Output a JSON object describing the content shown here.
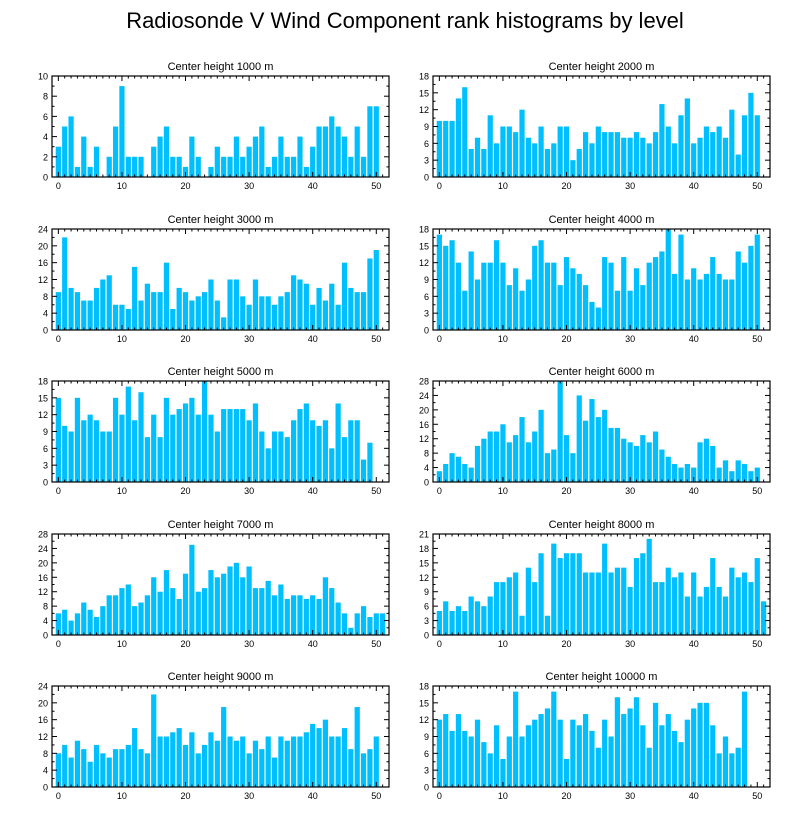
{
  "title": "Radiosonde V Wind Component rank histograms by level",
  "colors": {
    "bar": "#00bfff",
    "axis": "#000000",
    "background": "#ffffff"
  },
  "chart_data": [
    {
      "type": "bar",
      "title": "Center height 1000 m",
      "xlabel": "",
      "ylabel": "",
      "xlim": [
        -1,
        52
      ],
      "ylim": [
        0,
        10
      ],
      "xticks": [
        0,
        10,
        20,
        30,
        40,
        50
      ],
      "yticks": [
        0,
        2,
        4,
        6,
        8,
        10
      ],
      "categories": [
        0,
        1,
        2,
        3,
        4,
        5,
        6,
        7,
        8,
        9,
        10,
        11,
        12,
        13,
        14,
        15,
        16,
        17,
        18,
        19,
        20,
        21,
        22,
        23,
        24,
        25,
        26,
        27,
        28,
        29,
        30,
        31,
        32,
        33,
        34,
        35,
        36,
        37,
        38,
        39,
        40,
        41,
        42,
        43,
        44,
        45,
        46,
        47,
        48,
        49,
        50,
        51
      ],
      "values": [
        3,
        5,
        6,
        1,
        4,
        1,
        3,
        0,
        2,
        5,
        9,
        2,
        2,
        2,
        0,
        3,
        4,
        5,
        2,
        2,
        1,
        4,
        2,
        0,
        1,
        3,
        2,
        2,
        4,
        2,
        3,
        4,
        5,
        1,
        2,
        4,
        2,
        2,
        4,
        1,
        3,
        5,
        5,
        6,
        5,
        4,
        2,
        5,
        2,
        7,
        7,
        0
      ]
    },
    {
      "type": "bar",
      "title": "Center height 2000 m",
      "xlabel": "",
      "ylabel": "",
      "xlim": [
        -1,
        52
      ],
      "ylim": [
        0,
        18
      ],
      "xticks": [
        0,
        10,
        20,
        30,
        40,
        50
      ],
      "yticks": [
        0,
        3,
        6,
        9,
        12,
        15,
        18
      ],
      "categories": [
        0,
        1,
        2,
        3,
        4,
        5,
        6,
        7,
        8,
        9,
        10,
        11,
        12,
        13,
        14,
        15,
        16,
        17,
        18,
        19,
        20,
        21,
        22,
        23,
        24,
        25,
        26,
        27,
        28,
        29,
        30,
        31,
        32,
        33,
        34,
        35,
        36,
        37,
        38,
        39,
        40,
        41,
        42,
        43,
        44,
        45,
        46,
        47,
        48,
        49,
        50,
        51
      ],
      "values": [
        10,
        10,
        10,
        14,
        16,
        5,
        7,
        5,
        11,
        6,
        9,
        9,
        8,
        12,
        7,
        6,
        9,
        5,
        6,
        9,
        9,
        3,
        5,
        8,
        6,
        9,
        8,
        8,
        8,
        7,
        7,
        8,
        7,
        6,
        8,
        13,
        9,
        6,
        11,
        14,
        6,
        7,
        9,
        8,
        9,
        7,
        12,
        4,
        11,
        15,
        11,
        0
      ]
    },
    {
      "type": "bar",
      "title": "Center height 3000 m",
      "xlabel": "",
      "ylabel": "",
      "xlim": [
        -1,
        52
      ],
      "ylim": [
        0,
        24
      ],
      "xticks": [
        0,
        10,
        20,
        30,
        40,
        50
      ],
      "yticks": [
        0,
        4,
        8,
        12,
        16,
        20,
        24
      ],
      "categories": [
        0,
        1,
        2,
        3,
        4,
        5,
        6,
        7,
        8,
        9,
        10,
        11,
        12,
        13,
        14,
        15,
        16,
        17,
        18,
        19,
        20,
        21,
        22,
        23,
        24,
        25,
        26,
        27,
        28,
        29,
        30,
        31,
        32,
        33,
        34,
        35,
        36,
        37,
        38,
        39,
        40,
        41,
        42,
        43,
        44,
        45,
        46,
        47,
        48,
        49,
        50,
        51
      ],
      "values": [
        9,
        22,
        10,
        9,
        7,
        7,
        10,
        12,
        13,
        6,
        6,
        5,
        15,
        7,
        11,
        9,
        9,
        16,
        5,
        10,
        9,
        7,
        8,
        9,
        12,
        7,
        3,
        12,
        12,
        8,
        6,
        12,
        8,
        8,
        6,
        8,
        9,
        13,
        12,
        11,
        6,
        10,
        7,
        11,
        6,
        16,
        10,
        9,
        9,
        17,
        19,
        0
      ]
    },
    {
      "type": "bar",
      "title": "Center height 4000 m",
      "xlabel": "",
      "ylabel": "",
      "xlim": [
        -1,
        52
      ],
      "ylim": [
        0,
        18
      ],
      "xticks": [
        0,
        10,
        20,
        30,
        40,
        50
      ],
      "yticks": [
        0,
        3,
        6,
        9,
        12,
        15,
        18
      ],
      "categories": [
        0,
        1,
        2,
        3,
        4,
        5,
        6,
        7,
        8,
        9,
        10,
        11,
        12,
        13,
        14,
        15,
        16,
        17,
        18,
        19,
        20,
        21,
        22,
        23,
        24,
        25,
        26,
        27,
        28,
        29,
        30,
        31,
        32,
        33,
        34,
        35,
        36,
        37,
        38,
        39,
        40,
        41,
        42,
        43,
        44,
        45,
        46,
        47,
        48,
        49,
        50,
        51
      ],
      "values": [
        17,
        15,
        16,
        12,
        7,
        14,
        9,
        12,
        12,
        16,
        12,
        8,
        11,
        7,
        9,
        15,
        16,
        12,
        12,
        8,
        13,
        11,
        10,
        8,
        5,
        4,
        13,
        12,
        7,
        13,
        7,
        11,
        8,
        12,
        13,
        14,
        18,
        10,
        17,
        9,
        11,
        9,
        10,
        13,
        10,
        9,
        9,
        14,
        12,
        15,
        17,
        0
      ]
    },
    {
      "type": "bar",
      "title": "Center height 5000 m",
      "xlabel": "",
      "ylabel": "",
      "xlim": [
        -1,
        52
      ],
      "ylim": [
        0,
        18
      ],
      "xticks": [
        0,
        10,
        20,
        30,
        40,
        50
      ],
      "yticks": [
        0,
        3,
        6,
        9,
        12,
        15,
        18
      ],
      "categories": [
        0,
        1,
        2,
        3,
        4,
        5,
        6,
        7,
        8,
        9,
        10,
        11,
        12,
        13,
        14,
        15,
        16,
        17,
        18,
        19,
        20,
        21,
        22,
        23,
        24,
        25,
        26,
        27,
        28,
        29,
        30,
        31,
        32,
        33,
        34,
        35,
        36,
        37,
        38,
        39,
        40,
        41,
        42,
        43,
        44,
        45,
        46,
        47,
        48,
        49,
        50,
        51
      ],
      "values": [
        15,
        10,
        9,
        15,
        11,
        12,
        11,
        9,
        9,
        15,
        12,
        17,
        11,
        16,
        8,
        12,
        8,
        15,
        12,
        13,
        14,
        15,
        12,
        18,
        12,
        9,
        13,
        13,
        13,
        13,
        11,
        14,
        9,
        6,
        9,
        9,
        8,
        11,
        13,
        14,
        11,
        10,
        11,
        6,
        14,
        8,
        11,
        11,
        4,
        7,
        0,
        0
      ]
    },
    {
      "type": "bar",
      "title": "Center height 6000 m",
      "xlabel": "",
      "ylabel": "",
      "xlim": [
        -1,
        52
      ],
      "ylim": [
        0,
        28
      ],
      "xticks": [
        0,
        10,
        20,
        30,
        40,
        50
      ],
      "yticks": [
        0,
        4,
        8,
        12,
        16,
        20,
        24,
        28
      ],
      "categories": [
        0,
        1,
        2,
        3,
        4,
        5,
        6,
        7,
        8,
        9,
        10,
        11,
        12,
        13,
        14,
        15,
        16,
        17,
        18,
        19,
        20,
        21,
        22,
        23,
        24,
        25,
        26,
        27,
        28,
        29,
        30,
        31,
        32,
        33,
        34,
        35,
        36,
        37,
        38,
        39,
        40,
        41,
        42,
        43,
        44,
        45,
        46,
        47,
        48,
        49,
        50,
        51
      ],
      "values": [
        3,
        5,
        8,
        7,
        5,
        4,
        10,
        12,
        14,
        14,
        16,
        11,
        13,
        18,
        11,
        14,
        20,
        8,
        9,
        28,
        13,
        8,
        24,
        17,
        23,
        18,
        20,
        15,
        15,
        12,
        11,
        10,
        13,
        11,
        14,
        9,
        7,
        5,
        4,
        5,
        4,
        11,
        12,
        10,
        4,
        6,
        3,
        6,
        5,
        3,
        4,
        0
      ]
    },
    {
      "type": "bar",
      "title": "Center height 7000 m",
      "xlabel": "",
      "ylabel": "",
      "xlim": [
        -1,
        52
      ],
      "ylim": [
        0,
        28
      ],
      "xticks": [
        0,
        10,
        20,
        30,
        40,
        50
      ],
      "yticks": [
        0,
        4,
        8,
        12,
        16,
        20,
        24,
        28
      ],
      "categories": [
        0,
        1,
        2,
        3,
        4,
        5,
        6,
        7,
        8,
        9,
        10,
        11,
        12,
        13,
        14,
        15,
        16,
        17,
        18,
        19,
        20,
        21,
        22,
        23,
        24,
        25,
        26,
        27,
        28,
        29,
        30,
        31,
        32,
        33,
        34,
        35,
        36,
        37,
        38,
        39,
        40,
        41,
        42,
        43,
        44,
        45,
        46,
        47,
        48,
        49,
        50,
        51
      ],
      "values": [
        6,
        7,
        4,
        6,
        9,
        7,
        5,
        8,
        11,
        11,
        13,
        14,
        8,
        9,
        11,
        16,
        12,
        18,
        13,
        10,
        17,
        25,
        12,
        13,
        18,
        16,
        17,
        19,
        20,
        16,
        19,
        13,
        13,
        15,
        11,
        14,
        10,
        11,
        11,
        10,
        11,
        10,
        16,
        13,
        9,
        6,
        2,
        6,
        8,
        5,
        6,
        6
      ]
    },
    {
      "type": "bar",
      "title": "Center height 8000 m",
      "xlabel": "",
      "ylabel": "",
      "xlim": [
        -1,
        52
      ],
      "ylim": [
        0,
        21
      ],
      "xticks": [
        0,
        10,
        20,
        30,
        40,
        50
      ],
      "yticks": [
        0,
        3,
        6,
        9,
        12,
        15,
        18,
        21
      ],
      "categories": [
        0,
        1,
        2,
        3,
        4,
        5,
        6,
        7,
        8,
        9,
        10,
        11,
        12,
        13,
        14,
        15,
        16,
        17,
        18,
        19,
        20,
        21,
        22,
        23,
        24,
        25,
        26,
        27,
        28,
        29,
        30,
        31,
        32,
        33,
        34,
        35,
        36,
        37,
        38,
        39,
        40,
        41,
        42,
        43,
        44,
        45,
        46,
        47,
        48,
        49,
        50,
        51
      ],
      "values": [
        5,
        7,
        5,
        6,
        5,
        8,
        7,
        6,
        8,
        11,
        11,
        12,
        13,
        4,
        14,
        11,
        17,
        4,
        19,
        16,
        17,
        17,
        17,
        13,
        13,
        13,
        19,
        13,
        14,
        14,
        10,
        16,
        17,
        20,
        11,
        11,
        14,
        12,
        13,
        8,
        13,
        8,
        10,
        16,
        10,
        8,
        14,
        12,
        13,
        11,
        16,
        7
      ]
    },
    {
      "type": "bar",
      "title": "Center height 9000 m",
      "xlabel": "",
      "ylabel": "",
      "xlim": [
        -1,
        52
      ],
      "ylim": [
        0,
        24
      ],
      "xticks": [
        0,
        10,
        20,
        30,
        40,
        50
      ],
      "yticks": [
        0,
        4,
        8,
        12,
        16,
        20,
        24
      ],
      "categories": [
        0,
        1,
        2,
        3,
        4,
        5,
        6,
        7,
        8,
        9,
        10,
        11,
        12,
        13,
        14,
        15,
        16,
        17,
        18,
        19,
        20,
        21,
        22,
        23,
        24,
        25,
        26,
        27,
        28,
        29,
        30,
        31,
        32,
        33,
        34,
        35,
        36,
        37,
        38,
        39,
        40,
        41,
        42,
        43,
        44,
        45,
        46,
        47,
        48,
        49,
        50,
        51
      ],
      "values": [
        8,
        10,
        7,
        11,
        9,
        6,
        10,
        8,
        7,
        9,
        9,
        10,
        14,
        9,
        8,
        22,
        12,
        12,
        13,
        14,
        10,
        13,
        8,
        10,
        13,
        11,
        19,
        12,
        11,
        12,
        8,
        11,
        9,
        12,
        7,
        12,
        11,
        12,
        12,
        13,
        15,
        14,
        16,
        12,
        12,
        14,
        9,
        19,
        8,
        9,
        12,
        0
      ]
    },
    {
      "type": "bar",
      "title": "Center height 10000 m",
      "xlabel": "",
      "ylabel": "",
      "xlim": [
        -1,
        52
      ],
      "ylim": [
        0,
        18
      ],
      "xticks": [
        0,
        10,
        20,
        30,
        40,
        50
      ],
      "yticks": [
        0,
        3,
        6,
        9,
        12,
        15,
        18
      ],
      "categories": [
        0,
        1,
        2,
        3,
        4,
        5,
        6,
        7,
        8,
        9,
        10,
        11,
        12,
        13,
        14,
        15,
        16,
        17,
        18,
        19,
        20,
        21,
        22,
        23,
        24,
        25,
        26,
        27,
        28,
        29,
        30,
        31,
        32,
        33,
        34,
        35,
        36,
        37,
        38,
        39,
        40,
        41,
        42,
        43,
        44,
        45,
        46,
        47,
        48,
        49,
        50,
        51
      ],
      "values": [
        12,
        13,
        10,
        13,
        10,
        9,
        12,
        8,
        6,
        11,
        5,
        9,
        17,
        9,
        11,
        12,
        13,
        14,
        17,
        12,
        5,
        12,
        11,
        13,
        10,
        7,
        12,
        9,
        16,
        13,
        14,
        16,
        11,
        7,
        15,
        11,
        13,
        10,
        8,
        12,
        14,
        15,
        15,
        11,
        6,
        9,
        6,
        7,
        17,
        0,
        0,
        0
      ]
    }
  ]
}
